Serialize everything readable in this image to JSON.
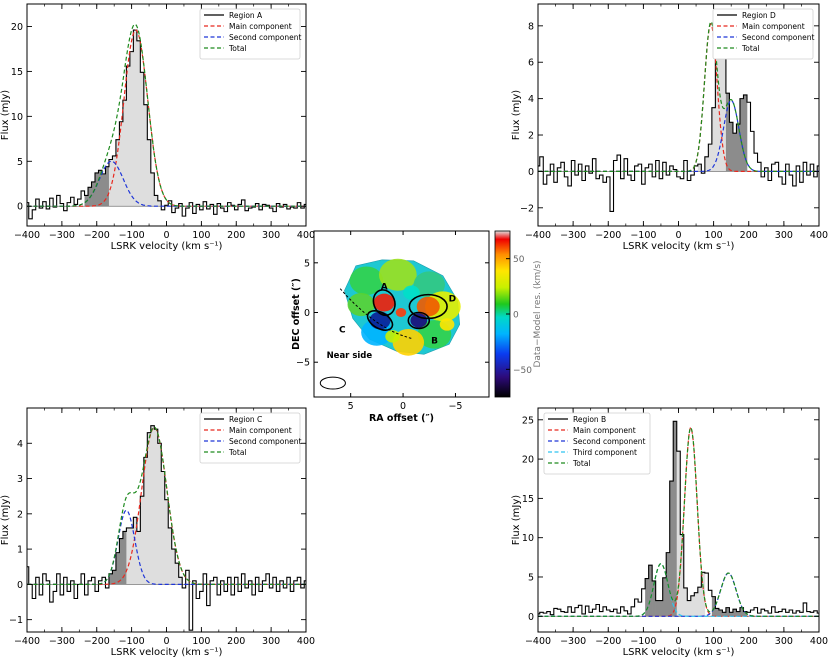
{
  "colors": {
    "data": "#000000",
    "main": "#e8281e",
    "second": "#1f36d8",
    "third": "#2ec4f0",
    "total": "#1e8a1e",
    "fill_light": "#dedede",
    "fill_dark": "#8c8c8c"
  },
  "chart_data": [
    {
      "id": "A",
      "type": "line",
      "xlabel": "LSRK velocity (km s⁻¹)",
      "ylabel": "Flux (mJy)",
      "xlim": [
        -400,
        400
      ],
      "ylim": [
        -2.2,
        22.5
      ],
      "xticks": [
        -400,
        -300,
        -200,
        -100,
        0,
        100,
        200,
        300,
        400
      ],
      "yticks": [
        0,
        5,
        10,
        15,
        20
      ],
      "legend": [
        "Region A",
        "Main component",
        "Second component",
        "Total"
      ],
      "legend_position": "top-right",
      "components": [
        {
          "name": "Main component",
          "amp": 19.6,
          "center": -88,
          "sigma": 34
        },
        {
          "name": "Second component",
          "amp": 5.0,
          "center": -158,
          "sigma": 34
        }
      ],
      "bin_edges": [
        -405,
        -395,
        -385,
        -375,
        -365,
        -355,
        -345,
        -335,
        -325,
        -315,
        -305,
        -295,
        -285,
        -275,
        -265,
        -255,
        -245,
        -235,
        -225,
        -215,
        -205,
        -195,
        -185,
        -175,
        -165,
        -155,
        -145,
        -135,
        -125,
        -115,
        -105,
        -95,
        -85,
        -75,
        -65,
        -55,
        -45,
        -35,
        -25,
        -15,
        -5,
        5,
        15,
        25,
        35,
        45,
        55,
        65,
        75,
        85,
        95,
        105,
        115,
        125,
        135,
        145,
        155,
        165,
        175,
        185,
        195,
        205,
        215,
        225,
        235,
        245,
        255,
        265,
        275,
        285,
        295,
        305,
        315,
        325,
        335,
        345,
        355,
        365,
        375,
        385,
        395,
        405
      ],
      "flux": [
        0.4,
        -1.4,
        -0.4,
        0.8,
        -0.2,
        0.5,
        -0.3,
        0.9,
        -0.1,
        1.2,
        0.3,
        -0.5,
        0.4,
        1.0,
        0.2,
        0.8,
        1.7,
        1.2,
        2.1,
        2.7,
        3.7,
        4.0,
        3.6,
        4.4,
        5.2,
        5.6,
        7.4,
        9.4,
        11.8,
        15.6,
        17.2,
        19.6,
        18.4,
        14.9,
        11.3,
        7.4,
        3.7,
        1.2,
        0.6,
        -0.4,
        0.1,
        0.6,
        -0.7,
        -0.2,
        0.3,
        -1.1,
        -0.2,
        0.4,
        -0.8,
        0.2,
        -0.4,
        0.5,
        -0.3,
        0.2,
        -0.9,
        0.3,
        -0.2,
        -0.6,
        0.4,
        0.1,
        -0.4,
        0.2,
        0.7,
        -0.5,
        -0.2,
        -0.1,
        0.3,
        -0.4,
        0.2,
        0.1,
        -0.2,
        -0.6,
        0.3,
        -0.1,
        0.2,
        -0.3,
        -0.1,
        -0.2,
        0.4,
        -0.2,
        0.2
      ]
    },
    {
      "id": "D",
      "type": "line",
      "xlabel": "LSRK velocity (km s⁻¹)",
      "ylabel": "Flux (mJy)",
      "xlim": [
        -400,
        400
      ],
      "ylim": [
        -3.0,
        9.2
      ],
      "xticks": [
        -400,
        -300,
        -200,
        -100,
        0,
        100,
        200,
        300,
        400
      ],
      "yticks": [
        -2,
        0,
        2,
        4,
        6,
        8
      ],
      "legend": [
        "Region D",
        "Main component",
        "Second component",
        "Total"
      ],
      "legend_position": "top-right",
      "components": [
        {
          "name": "Main component",
          "amp": 8.1,
          "center": 92,
          "sigma": 18
        },
        {
          "name": "Second component",
          "amp": 3.9,
          "center": 150,
          "sigma": 22
        }
      ],
      "bin_edges": [
        -405,
        -395,
        -385,
        -375,
        -365,
        -355,
        -345,
        -335,
        -325,
        -315,
        -305,
        -295,
        -285,
        -275,
        -265,
        -255,
        -245,
        -235,
        -225,
        -215,
        -205,
        -195,
        -185,
        -175,
        -165,
        -155,
        -145,
        -135,
        -125,
        -115,
        -105,
        -95,
        -85,
        -75,
        -65,
        -55,
        -45,
        -35,
        -25,
        -15,
        -5,
        5,
        15,
        25,
        35,
        45,
        55,
        65,
        75,
        85,
        95,
        105,
        115,
        125,
        135,
        145,
        155,
        165,
        175,
        185,
        195,
        205,
        215,
        225,
        235,
        245,
        255,
        265,
        275,
        285,
        295,
        305,
        315,
        325,
        335,
        345,
        355,
        365,
        375,
        385,
        395,
        405
      ],
      "flux": [
        0.3,
        0.8,
        -0.7,
        -0.2,
        0.4,
        -0.6,
        0.2,
        0.5,
        -0.3,
        -0.8,
        0.6,
        -0.2,
        0.4,
        -0.5,
        0.3,
        -0.1,
        0.7,
        -0.4,
        -0.2,
        -0.6,
        -0.3,
        -2.2,
        0.6,
        0.9,
        -0.4,
        0.7,
        -0.2,
        -0.5,
        0.3,
        0.4,
        -0.7,
        0.2,
        0.4,
        -0.3,
        0.6,
        -0.4,
        0.5,
        -0.2,
        0.3,
        0.1,
        -0.3,
        -0.4,
        0.6,
        -0.5,
        -0.2,
        0.3,
        0.4,
        -0.1,
        0.8,
        1.5,
        3.5,
        6.7,
        8.3,
        7.6,
        4.3,
        2.7,
        2.1,
        2.6,
        4.0,
        4.2,
        3.8,
        2.2,
        1.0,
        0.5,
        -0.3,
        0.2,
        -0.5,
        0.4,
        0.5,
        -0.3,
        -0.7,
        0.4,
        -0.2,
        -0.8,
        0.3,
        -0.6,
        0.5,
        -0.2,
        0.4,
        -0.3,
        0.3
      ]
    },
    {
      "id": "C",
      "type": "line",
      "xlabel": "LSRK velocity (km s⁻¹)",
      "ylabel": "Flux (mJy)",
      "xlim": [
        -400,
        400
      ],
      "ylim": [
        -1.35,
        5.0
      ],
      "xticks": [
        -400,
        -300,
        -200,
        -100,
        0,
        100,
        200,
        300,
        400
      ],
      "yticks": [
        -1,
        0,
        1,
        2,
        3,
        4
      ],
      "legend": [
        "Region C",
        "Main component",
        "Second component",
        "Total"
      ],
      "legend_position": "top-right",
      "components": [
        {
          "name": "Main component",
          "amp": 4.45,
          "center": -35,
          "sigma": 36
        },
        {
          "name": "Second component",
          "amp": 2.1,
          "center": -115,
          "sigma": 24
        }
      ],
      "bin_edges": [
        -405,
        -395,
        -385,
        -375,
        -365,
        -355,
        -345,
        -335,
        -325,
        -315,
        -305,
        -295,
        -285,
        -275,
        -265,
        -255,
        -245,
        -235,
        -225,
        -215,
        -205,
        -195,
        -185,
        -175,
        -165,
        -155,
        -145,
        -135,
        -125,
        -115,
        -105,
        -95,
        -85,
        -75,
        -65,
        -55,
        -45,
        -35,
        -25,
        -15,
        -5,
        5,
        15,
        25,
        35,
        45,
        55,
        65,
        75,
        85,
        95,
        105,
        115,
        125,
        135,
        145,
        155,
        165,
        175,
        185,
        195,
        205,
        215,
        225,
        235,
        245,
        255,
        265,
        275,
        285,
        295,
        305,
        315,
        325,
        335,
        345,
        355,
        365,
        375,
        385,
        395,
        405
      ],
      "flux": [
        0.5,
        0.0,
        -0.4,
        0.2,
        -0.3,
        0.3,
        0.1,
        -0.5,
        -0.2,
        0.3,
        -0.3,
        0.2,
        -0.2,
        0.1,
        -0.4,
        0.0,
        0.3,
        -0.3,
        0.1,
        0.2,
        -0.2,
        0.1,
        0.2,
        -0.1,
        0.3,
        0.4,
        0.9,
        1.3,
        1.5,
        1.6,
        1.6,
        1.9,
        1.5,
        2.5,
        3.6,
        4.3,
        4.5,
        4.4,
        4.0,
        3.2,
        2.4,
        1.6,
        1.0,
        0.6,
        0.2,
        -0.1,
        0.4,
        -1.3,
        0.1,
        -0.4,
        -0.2,
        0.3,
        -0.6,
        0.1,
        0.2,
        -0.3,
        0.1,
        -0.2,
        0.2,
        -0.3,
        0.2,
        -0.2,
        0.3,
        -0.1,
        0.1,
        -0.3,
        0.2,
        -0.2,
        0.1,
        0.3,
        -0.1,
        0.2,
        -0.2,
        0.1,
        -0.1,
        0.2,
        -0.2,
        0.1,
        0.2,
        -0.1,
        0.1
      ]
    },
    {
      "id": "B",
      "type": "line",
      "xlabel": "LSRK velocity (km s⁻¹)",
      "ylabel": "Flux (mJy)",
      "xlim": [
        -400,
        400
      ],
      "ylim": [
        -2.0,
        26.5
      ],
      "xticks": [
        -400,
        -300,
        -200,
        -100,
        0,
        100,
        200,
        300,
        400
      ],
      "yticks": [
        0,
        5,
        10,
        15,
        20,
        25
      ],
      "legend": [
        "Region B",
        "Main component",
        "Second component",
        "Third component",
        "Total"
      ],
      "legend_position": "top-left",
      "components": [
        {
          "name": "Main component",
          "amp": 24.0,
          "center": 35,
          "sigma": 18
        },
        {
          "name": "Second component",
          "amp": 5.5,
          "center": 142,
          "sigma": 22
        },
        {
          "name": "Third component",
          "amp": 6.7,
          "center": -50,
          "sigma": 20
        }
      ],
      "bin_edges": [
        -405,
        -395,
        -385,
        -375,
        -365,
        -355,
        -345,
        -335,
        -325,
        -315,
        -305,
        -295,
        -285,
        -275,
        -265,
        -255,
        -245,
        -235,
        -225,
        -215,
        -205,
        -195,
        -185,
        -175,
        -165,
        -155,
        -145,
        -135,
        -125,
        -115,
        -105,
        -95,
        -85,
        -75,
        -65,
        -55,
        -45,
        -35,
        -25,
        -15,
        -5,
        5,
        15,
        25,
        35,
        45,
        55,
        65,
        75,
        85,
        95,
        105,
        115,
        125,
        135,
        145,
        155,
        165,
        175,
        185,
        195,
        205,
        215,
        225,
        235,
        245,
        255,
        265,
        275,
        285,
        295,
        305,
        315,
        325,
        335,
        345,
        355,
        365,
        375,
        385,
        395,
        405
      ],
      "flux": [
        0.3,
        0.5,
        0.4,
        0.6,
        0.2,
        1.0,
        0.9,
        0.6,
        0.5,
        1.2,
        0.5,
        1.1,
        1.4,
        0.3,
        1.3,
        0.5,
        0.9,
        1.5,
        0.6,
        1.2,
        0.8,
        0.6,
        0.9,
        0.4,
        1.2,
        0.7,
        0.3,
        1.2,
        2.2,
        1.8,
        3.5,
        4.8,
        6.5,
        4.5,
        2.0,
        2.0,
        4.9,
        8.1,
        17.2,
        24.8,
        21.0,
        10.4,
        3.6,
        2.0,
        2.6,
        3.0,
        3.7,
        5.6,
        5.5,
        3.3,
        2.5,
        1.0,
        0.8,
        0.5,
        1.1,
        0.5,
        0.9,
        0.6,
        1.1,
        0.6,
        0.5,
        0.8,
        1.1,
        0.4,
        0.9,
        0.7,
        0.4,
        1.2,
        0.5,
        0.6,
        0.9,
        0.5,
        0.8,
        0.4,
        0.7,
        0.5,
        1.7,
        0.6,
        0.5,
        0.7,
        0.4
      ]
    },
    {
      "id": "center_map",
      "type": "heatmap",
      "xlabel": "RA offset (″)",
      "ylabel": "DEC offset (″)",
      "xlim": [
        8.5,
        -8.2
      ],
      "ylim": [
        -8.5,
        8.2
      ],
      "xticks": [
        5,
        0,
        -5
      ],
      "yticks": [
        5,
        0,
        -5
      ],
      "colorbar_label": "Data−Model res. (km/s)",
      "colorbar_range": [
        -75,
        75
      ],
      "colorbar_ticks": [
        50,
        0,
        -50
      ],
      "annotation": "Near side",
      "regions": [
        {
          "label": "A",
          "ra": 1.8,
          "dec": 1.0,
          "a": 1.0,
          "b": 1.3,
          "angle": 20
        },
        {
          "label": "D",
          "ra": -2.4,
          "dec": 0.6,
          "a": 1.8,
          "b": 1.2,
          "angle": 0
        },
        {
          "label": "C",
          "ra": 2.2,
          "dec": -0.8,
          "a": 1.3,
          "b": 0.8,
          "angle": -30
        },
        {
          "label": "B",
          "ra": -1.5,
          "dec": -0.8,
          "a": 1.0,
          "b": 0.8,
          "angle": 0
        }
      ],
      "beam": {
        "ra": 6.7,
        "dec": -7.1,
        "major": 1.2,
        "minor": 0.6
      }
    }
  ]
}
